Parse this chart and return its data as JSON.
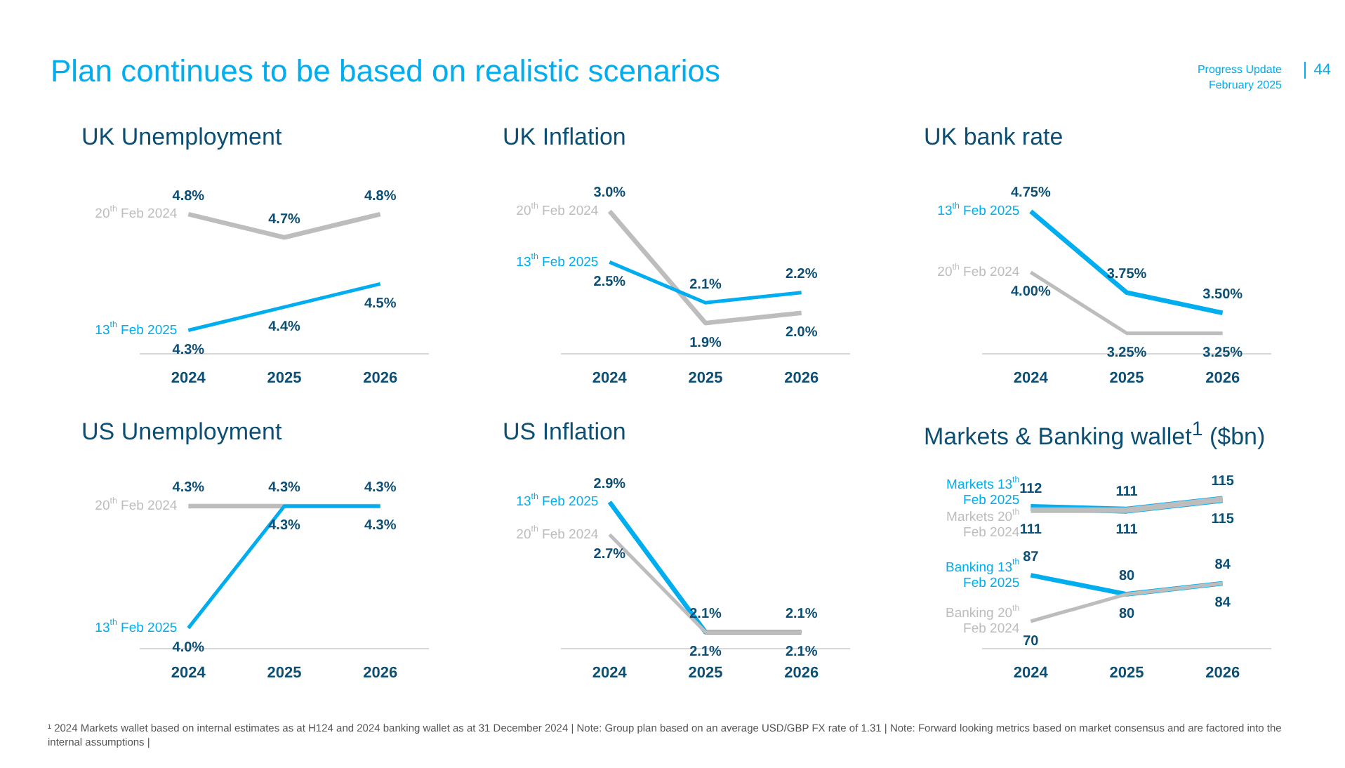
{
  "chart_data": [
    {
      "type": "line",
      "title": "UK Unemployment",
      "categories": [
        "2024",
        "2025",
        "2026"
      ],
      "tick_labels": "x",
      "marker": "none",
      "annotations": [
        "Plan continues to be based on realistic scenarios",
        "Progress Update",
        "February 2025",
        "44"
      ],
      "series": [
        {
          "name": "20$^{th}$ Feb 2024",
          "color": "#bdbdbd",
          "values": [
            4.8,
            4.7,
            4.8
          ],
          "value_labels": [
            "4.8%",
            "4.7%",
            "4.8%"
          ]
        },
        {
          "name": "13$^{th}$ Feb 2025",
          "color": "#00aeef",
          "values": [
            4.3,
            4.4,
            4.5
          ],
          "value_labels": [
            "4.3%",
            "4.4%",
            "4.5%"
          ]
        }
      ]
    },
    {
      "type": "line",
      "title": "UK Inflation",
      "categories": [
        "2024",
        "2025",
        "2026"
      ],
      "tick_labels": "x",
      "marker": "none",
      "series": [
        {
          "name": "20$^{th}$ Feb 2024",
          "color": "#bdbdbd",
          "values": [
            3.0,
            1.9,
            2.0
          ],
          "value_labels": [
            "3.0%",
            "1.9%",
            "2.0%"
          ]
        },
        {
          "name": "13$^{th}$ Feb 2025",
          "color": "#00aeef",
          "values": [
            2.5,
            2.1,
            2.2
          ],
          "value_labels": [
            "2.5%",
            "2.1%",
            "2.2%"
          ]
        }
      ]
    },
    {
      "type": "line",
      "title": "UK bank rate",
      "categories": [
        "2024",
        "2025",
        "2026"
      ],
      "tick_labels": "x",
      "marker": "none",
      "series": [
        {
          "name": "13$^{th}$ Feb 2025",
          "color": "#00aeef",
          "values": [
            4.75,
            3.75,
            3.5
          ],
          "value_labels": [
            "4.75%",
            "3.75%",
            "3.50%"
          ]
        },
        {
          "name": "20$^{th}$ Feb 2024",
          "color": "#bdbdbd",
          "values": [
            4.0,
            3.25,
            3.25
          ],
          "value_labels": [
            "4.00%",
            "3.25%",
            "3.25%"
          ]
        }
      ]
    },
    {
      "type": "line",
      "title": "US Unemployment",
      "categories": [
        "2024",
        "2025",
        "2026"
      ],
      "tick_labels": "x",
      "marker": "none",
      "series": [
        {
          "name": "20$^{th}$ Feb 2024",
          "color": "#bdbdbd",
          "values": [
            4.3,
            4.3,
            4.3
          ],
          "value_labels": [
            "4.3%",
            "4.3%",
            "4.3%"
          ]
        },
        {
          "name": "13$^{th}$ Feb 2025",
          "color": "#00aeef",
          "values": [
            4.0,
            4.3,
            4.3
          ],
          "value_labels": [
            "4.0%",
            "4.3%",
            "4.3%"
          ]
        }
      ]
    },
    {
      "type": "line",
      "title": "US Inflation",
      "categories": [
        "2024",
        "2025",
        "2026"
      ],
      "tick_labels": "x",
      "marker": "none",
      "series": [
        {
          "name": "13$^{th}$ Feb 2025",
          "color": "#00aeef",
          "values": [
            2.9,
            2.1,
            2.1
          ],
          "value_labels": [
            "2.9%",
            "2.1%",
            "2.1%"
          ]
        },
        {
          "name": "20$^{th}$ Feb 2024",
          "color": "#bdbdbd",
          "values": [
            2.7,
            2.1,
            2.1
          ],
          "value_labels": [
            "2.7%",
            "2.1%",
            "2.1%"
          ]
        }
      ]
    },
    {
      "type": "line",
      "title": "Markets & Banking wallet$^{1}$ ($bn)",
      "categories": [
        "2024",
        "2025",
        "2026"
      ],
      "tick_labels": "x",
      "marker": "none",
      "annotations": [
        "¹ 2024 Markets wallet based on internal estimates as at H124 and 2024 banking wallet as at 31 December 2024 | Note: Group plan based on an average USD/GBP FX rate of 1.31 | Note: Forward looking metrics based on market consensus and are factored into the internal assumptions |"
      ],
      "series": [
        {
          "name": "Markets 13$^{th}$ Feb 2025",
          "color": "#00aeef",
          "values": [
            112,
            111,
            115
          ],
          "value_labels": [
            "112",
            "111",
            "115"
          ]
        },
        {
          "name": "Markets 20$^{th}$ Feb 2024",
          "color": "#bdbdbd",
          "values": [
            111,
            111,
            115
          ],
          "value_labels": [
            "111",
            "111",
            "115"
          ]
        },
        {
          "name": "Banking 13$^{th}$ Feb 2025",
          "color": "#00aeef",
          "values": [
            87,
            80,
            84
          ],
          "value_labels": [
            "87",
            "80",
            "84"
          ]
        },
        {
          "name": "Banking 20$^{th}$ Feb 2024",
          "color": "#bdbdbd",
          "values": [
            70,
            80,
            84
          ],
          "value_labels": [
            "70",
            "80",
            "84"
          ]
        }
      ]
    }
  ]
}
